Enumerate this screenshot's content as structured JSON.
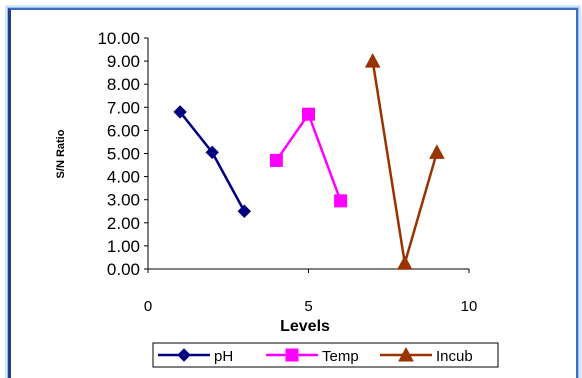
{
  "chart_data": {
    "type": "scatter",
    "title": "",
    "xlabel": "Levels",
    "ylabel": "S/N Ratio",
    "xlim": [
      0,
      10
    ],
    "ylim": [
      0,
      10
    ],
    "x_ticks": [
      "0",
      "5",
      "10"
    ],
    "y_ticks": [
      "0.00",
      "1.00",
      "2.00",
      "3.00",
      "4.00",
      "5.00",
      "6.00",
      "7.00",
      "8.00",
      "9.00",
      "10.00"
    ],
    "grid": false,
    "legend_position": "bottom",
    "series": [
      {
        "name": "pH",
        "color": "#000080",
        "marker": "diamond",
        "x": [
          1,
          2,
          3
        ],
        "y": [
          6.8,
          5.05,
          2.5
        ]
      },
      {
        "name": "Temp",
        "color": "#ff00ff",
        "marker": "square",
        "x": [
          4,
          5,
          6
        ],
        "y": [
          4.7,
          6.7,
          2.95
        ]
      },
      {
        "name": "Incub",
        "color": "#993300",
        "marker": "triangle",
        "x": [
          7,
          8,
          9
        ],
        "y": [
          9.0,
          0.25,
          5.05
        ]
      }
    ]
  }
}
